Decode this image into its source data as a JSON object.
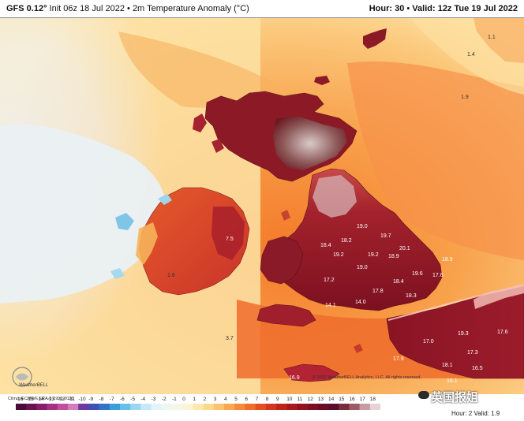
{
  "header": {
    "model": "GFS 0.12°",
    "init": "Init 06z 18 Jul 2022",
    "separator": "•",
    "product": "2m Temperature Anomaly (°C)",
    "hour_label": "Hour: 30",
    "valid_label": "Valid: 12z Tue 19 Jul 2022"
  },
  "colors": {
    "land_high": "#7a0f1c",
    "land_mid": "#b3222a",
    "sea_warm": "#f47a2a",
    "sea_mild": "#fbc77a",
    "sea_cool": "#fde3a6",
    "atlantic_cool": "#eaf1f7",
    "cold_spot": "#7fc5e8"
  },
  "colorbar": {
    "ticks": [
      "-16",
      "-15",
      "-14",
      "-13",
      "-12",
      "-11",
      "-10",
      "-9",
      "-8",
      "-7",
      "-6",
      "-5",
      "-4",
      "-3",
      "-2",
      "-1",
      "0",
      "1",
      "2",
      "3",
      "4",
      "5",
      "6",
      "7",
      "8",
      "9",
      "10",
      "11",
      "12",
      "13",
      "14",
      "15",
      "16",
      "17",
      "18"
    ],
    "colors": [
      "#4a0a3a",
      "#6b1250",
      "#8a1c6a",
      "#a83084",
      "#c04e9e",
      "#d47cbc",
      "#6c3aa0",
      "#3f4fb6",
      "#2f74c9",
      "#3b9ed8",
      "#66c0e6",
      "#9ad7ef",
      "#c7e9f5",
      "#e4f3f8",
      "#eef6f2",
      "#f7f7e8",
      "#fdf3d2",
      "#fde8b0",
      "#fcd98d",
      "#fbc46c",
      "#f8a950",
      "#f48b3a",
      "#ee6c2c",
      "#e34f22",
      "#d3361d",
      "#bf241c",
      "#a9181d",
      "#93111f",
      "#7e0d22",
      "#6b0b24",
      "#5a0c28",
      "#7a2d3c",
      "#9c5a66",
      "#c89aa1",
      "#e8d2d6"
    ]
  },
  "map_labels": {
    "climo": "Climo: ECMWF ERA-5 1991-2020",
    "copyright": "© 2022 WeatherBELL Analytics, LLC. All rights reserved.",
    "logo": "WeatherBELL"
  },
  "values": [
    {
      "text": "1.1"
    },
    {
      "text": "1.4"
    },
    {
      "text": "1.9"
    },
    {
      "text": "19.0"
    },
    {
      "text": "19.7"
    },
    {
      "text": "18.2"
    },
    {
      "text": "20.1"
    },
    {
      "text": "18.4"
    },
    {
      "text": "19.2"
    },
    {
      "text": "19.2"
    },
    {
      "text": "18.9"
    },
    {
      "text": "18.9"
    },
    {
      "text": "19.0"
    },
    {
      "text": "19.6"
    },
    {
      "text": "17.2"
    },
    {
      "text": "18.4"
    },
    {
      "text": "17.6"
    },
    {
      "text": "17.8"
    },
    {
      "text": "18.3"
    },
    {
      "text": "14.1"
    },
    {
      "text": "14.0"
    },
    {
      "text": "17.0"
    },
    {
      "text": "19.3"
    },
    {
      "text": "17.6"
    },
    {
      "text": "17.3"
    },
    {
      "text": "17.9"
    },
    {
      "text": "18.1"
    },
    {
      "text": "16.5"
    },
    {
      "text": "16.1"
    },
    {
      "text": "16.9"
    },
    {
      "text": "7.5"
    },
    {
      "text": "3.7"
    },
    {
      "text": "1.6"
    }
  ],
  "watermark": "英国报姐",
  "mini_caption": "Hour: 2  Valid: 1.9"
}
